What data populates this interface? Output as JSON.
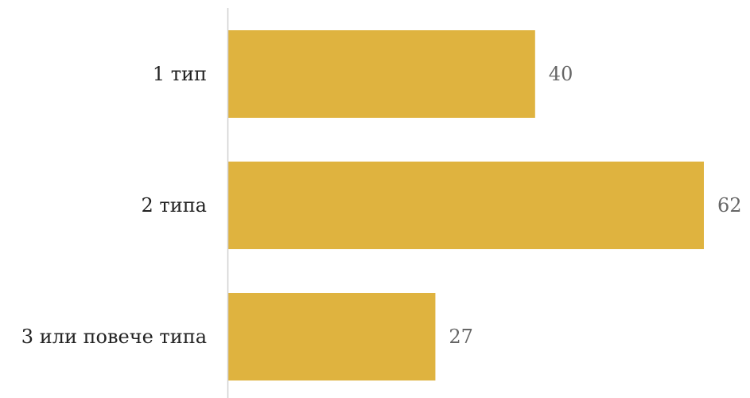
{
  "chart_data": {
    "type": "bar",
    "orientation": "horizontal",
    "categories": [
      "1 тип",
      "2 типа",
      "3 или повече типа"
    ],
    "values": [
      40,
      62,
      27
    ],
    "value_labels": [
      "40",
      "62",
      "27"
    ],
    "title": "",
    "xlabel": "",
    "ylabel": "",
    "xlim": [
      0,
      62
    ],
    "grid": false,
    "legend": "none",
    "colors": {
      "bar": "#DFB33F",
      "axis": "#D0D0D0",
      "category_text": "#222222",
      "value_text": "#666666"
    }
  }
}
